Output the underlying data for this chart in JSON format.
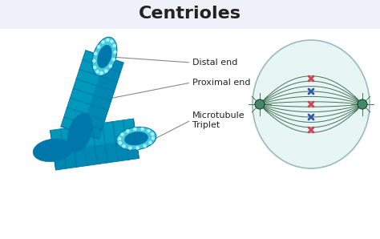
{
  "title": "Centrioles",
  "title_fontsize": 16,
  "title_fontweight": "bold",
  "bg_top": "#eef2f8",
  "bg_bottom": "#ffffff",
  "centriole_dark": "#0077aa",
  "centriole_mid": "#0099bb",
  "centriole_light": "#22bbcc",
  "centriole_lighter": "#44ccdd",
  "dot_color": "#aaeeff",
  "stripe_color": "#005588",
  "label_color": "#222222",
  "line_color": "#888888",
  "labels": [
    "Distal end",
    "Proximal end",
    "Microtubule\nTriplet"
  ],
  "cell_fill": "#e8f5f5",
  "cell_outline": "#99bbbb",
  "spindle_color": "#336644",
  "chrom_blue": "#3355aa",
  "chrom_pink": "#cc4455",
  "centrosome_fill": "#448866",
  "centrosome_outline": "#224433"
}
